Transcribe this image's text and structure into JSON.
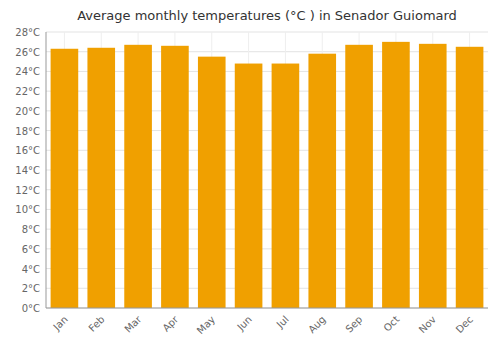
{
  "chart_data": {
    "type": "bar",
    "title": "Average monthly temperatures (°C ) in Senador Guiomard",
    "categories": [
      "Jan",
      "Feb",
      "Mar",
      "Apr",
      "May",
      "Jun",
      "Jul",
      "Aug",
      "Sep",
      "Oct",
      "Nov",
      "Dec"
    ],
    "values": [
      26.3,
      26.4,
      26.7,
      26.6,
      25.5,
      24.8,
      24.8,
      25.8,
      26.7,
      27.0,
      26.8,
      26.5
    ],
    "color": "#F0A000",
    "ylim": [
      0,
      28
    ],
    "yticks": [
      {
        "value": 0,
        "label": "0°C"
      },
      {
        "value": 2,
        "label": "2°C"
      },
      {
        "value": 4,
        "label": "4°C"
      },
      {
        "value": 6,
        "label": "6°C"
      },
      {
        "value": 8,
        "label": "8°C"
      },
      {
        "value": 10,
        "label": "10°C"
      },
      {
        "value": 12,
        "label": "12°C"
      },
      {
        "value": 14,
        "label": "14°C"
      },
      {
        "value": 16,
        "label": "16°C"
      },
      {
        "value": 18,
        "label": "18°C"
      },
      {
        "value": 20,
        "label": "20°C"
      },
      {
        "value": 22,
        "label": "22°C"
      },
      {
        "value": 24,
        "label": "24°C"
      },
      {
        "value": 26,
        "label": "26°C"
      },
      {
        "value": 28,
        "label": "28°C"
      }
    ],
    "grid": true
  }
}
